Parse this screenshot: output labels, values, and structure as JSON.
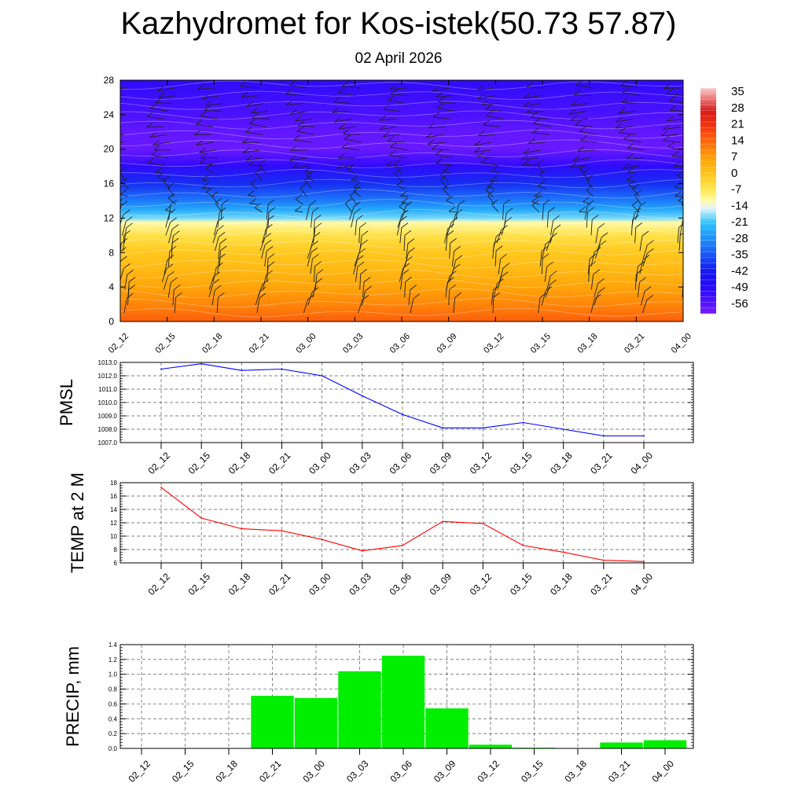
{
  "title": "Kazhydromet for Kos-istek(50.73 57.87)",
  "subtitle": "02 April 2026",
  "chart_data": [
    {
      "type": "heatmap",
      "name": "temperature-wind cross-section",
      "xlabel": "",
      "ylabel": "",
      "categories": [
        "02_12",
        "02_15",
        "02_18",
        "02_21",
        "03_00",
        "03_03",
        "03_06",
        "03_09",
        "03_12",
        "03_15",
        "03_18",
        "03_21",
        "04_00"
      ],
      "yticks": [
        0,
        4,
        8,
        12,
        16,
        20,
        24,
        28
      ],
      "ylim": [
        0,
        28
      ],
      "colorbar_labels": [
        "35",
        "28",
        "21",
        "14",
        "7",
        "0",
        "-7",
        "-14",
        "-21",
        "-28",
        "-35",
        "-42",
        "-49",
        "-56"
      ],
      "colorbar_range": [
        -60,
        38
      ],
      "temperature_profile": [
        {
          "level": 0,
          "value": 16
        },
        {
          "level": 2,
          "value": 11
        },
        {
          "level": 4,
          "value": 7
        },
        {
          "level": 6,
          "value": 3
        },
        {
          "level": 8,
          "value": 0
        },
        {
          "level": 10,
          "value": -5
        },
        {
          "level": 11.5,
          "value": -11
        },
        {
          "level": 12,
          "value": -18
        },
        {
          "level": 13,
          "value": -24
        },
        {
          "level": 14,
          "value": -30
        },
        {
          "level": 16,
          "value": -39
        },
        {
          "level": 18,
          "value": -50
        },
        {
          "level": 20,
          "value": -58
        },
        {
          "level": 22,
          "value": -57
        },
        {
          "level": 24,
          "value": -54
        },
        {
          "level": 26,
          "value": -52
        },
        {
          "level": 28,
          "value": -50
        }
      ]
    },
    {
      "type": "line",
      "name": "PMSL",
      "ylabel": "PMSL",
      "categories": [
        "02_12",
        "02_15",
        "02_18",
        "02_21",
        "03_00",
        "03_03",
        "03_06",
        "03_09",
        "03_12",
        "03_15",
        "03_18",
        "03_21",
        "04_00"
      ],
      "values": [
        1012.5,
        1012.9,
        1012.4,
        1012.5,
        1012.0,
        1010.5,
        1009.1,
        1008.1,
        1008.1,
        1008.5,
        1008.0,
        1007.5,
        1007.5
      ],
      "yticks": [
        "1013.0",
        "1012.0",
        "1011.0",
        "1010.0",
        "1009.0",
        "1008.0",
        "1007.0"
      ],
      "ylim": [
        1007.0,
        1013.0
      ],
      "color": "#0000ff"
    },
    {
      "type": "line",
      "name": "TEMP at 2 M",
      "ylabel": "TEMP at 2 M",
      "categories": [
        "02_12",
        "02_15",
        "02_18",
        "02_21",
        "03_00",
        "03_03",
        "03_06",
        "03_09",
        "03_12",
        "03_15",
        "03_18",
        "03_21",
        "04_00"
      ],
      "values": [
        17.3,
        12.7,
        11.1,
        10.8,
        9.5,
        7.8,
        8.6,
        12.2,
        11.9,
        8.6,
        7.6,
        6.4,
        6.2
      ],
      "yticks": [
        "18",
        "16",
        "14",
        "12",
        "10",
        "8",
        "6"
      ],
      "ylim": [
        6,
        18
      ],
      "color": "#ff0000"
    },
    {
      "type": "bar",
      "name": "PRECIP, mm",
      "ylabel": "PRECIP, mm",
      "categories": [
        "02_12",
        "02_15",
        "02_18",
        "02_21",
        "03_00",
        "03_03",
        "03_06",
        "03_09",
        "03_12",
        "03_15",
        "03_18",
        "03_21",
        "04_00"
      ],
      "values": [
        0,
        0,
        0,
        0.71,
        0.68,
        1.04,
        1.25,
        0.54,
        0.05,
        0.01,
        0,
        0.08,
        0.11
      ],
      "yticks": [
        "1.4",
        "1.2",
        "1.0",
        "0.8",
        "0.6",
        "0.4",
        "0.2",
        "0.0"
      ],
      "ylim": [
        0,
        1.4
      ],
      "color": "#00ee00"
    }
  ]
}
